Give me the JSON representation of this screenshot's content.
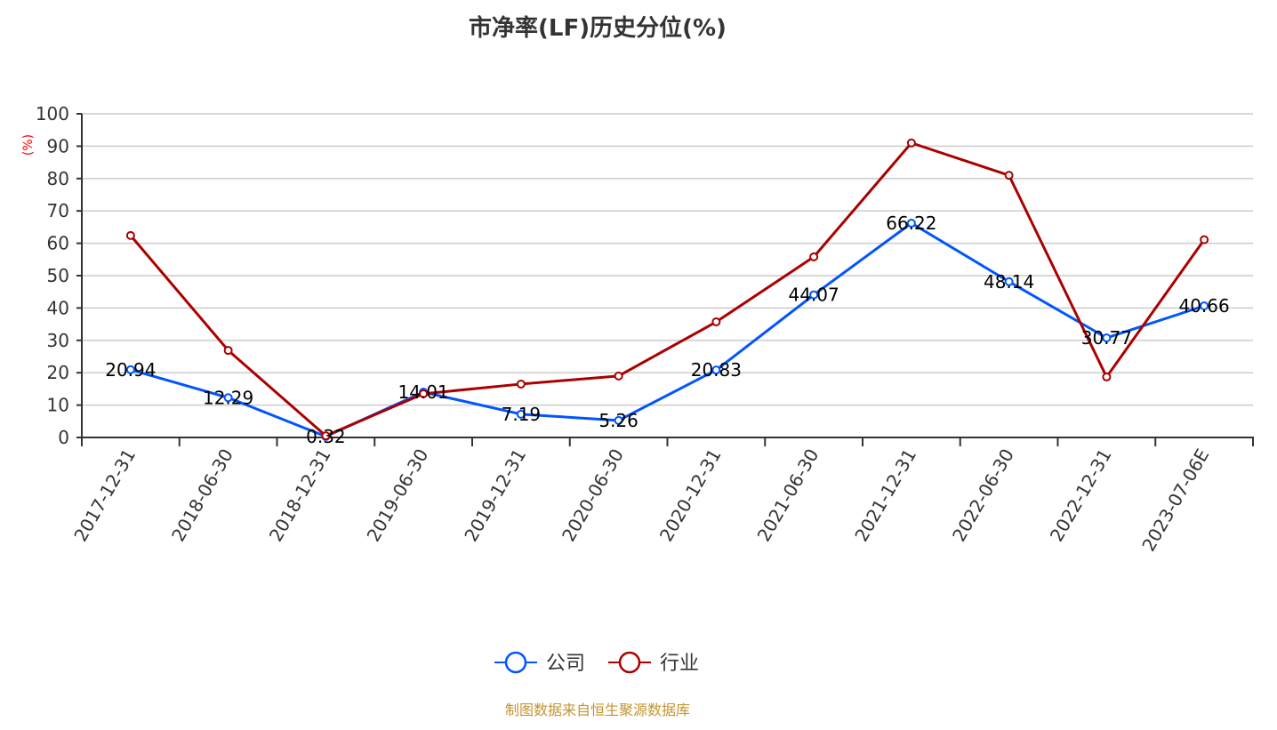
{
  "chart_data": {
    "type": "line",
    "title": "市净率(LF)历史分位(%)",
    "xlabel": "",
    "ylabel": "(%)",
    "ylim": [
      0,
      100
    ],
    "yticks": [
      0,
      10,
      20,
      30,
      40,
      50,
      60,
      70,
      80,
      90,
      100
    ],
    "grid": true,
    "legend_position": "bottom",
    "categories": [
      "2017-12-31",
      "2018-06-30",
      "2018-12-31",
      "2019-06-30",
      "2019-12-31",
      "2020-06-30",
      "2020-12-31",
      "2021-06-30",
      "2021-12-31",
      "2022-06-30",
      "2022-12-31",
      "2023-07-06E"
    ],
    "series": [
      {
        "name": "公司",
        "color": "#0055ff",
        "values": [
          20.94,
          12.29,
          0.32,
          14.01,
          7.19,
          5.26,
          20.83,
          44.07,
          66.22,
          48.14,
          30.77,
          40.66
        ],
        "show_labels": true
      },
      {
        "name": "行业",
        "color": "#aa0000",
        "values": [
          62.4,
          26.9,
          0.5,
          13.5,
          16.5,
          19.0,
          35.7,
          55.8,
          91.0,
          81.0,
          18.7,
          61.1
        ],
        "show_labels": false
      }
    ],
    "source_note": "制图数据来自恒生聚源数据库"
  }
}
